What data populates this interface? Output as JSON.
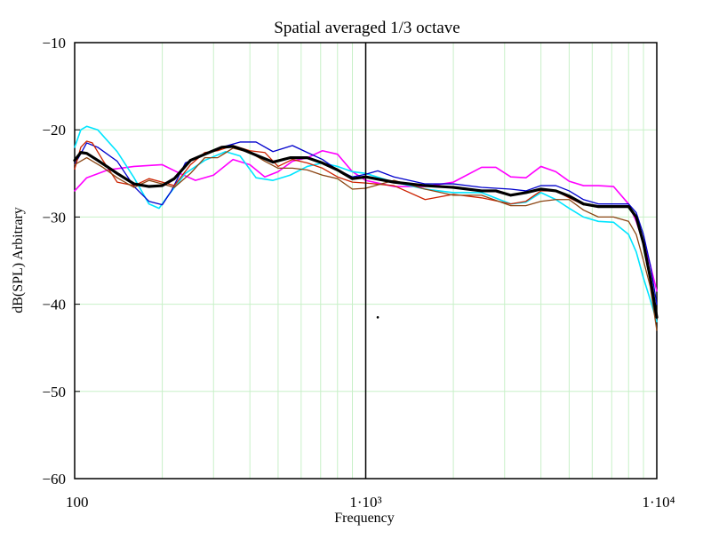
{
  "chart_data": {
    "type": "line",
    "title": "Spatial averaged 1/3 octave",
    "xlabel": "Frequency",
    "ylabel": "dB(SPL) Arbitrary",
    "xscale": "log",
    "xlim": [
      100,
      10000
    ],
    "ylim": [
      -60,
      -10
    ],
    "grid": true,
    "legend": "none",
    "x_ticks": [
      {
        "value": 100,
        "label": "100"
      },
      {
        "value": 1000,
        "label": "1·10³"
      },
      {
        "value": 10000,
        "label": "1·10⁴"
      }
    ],
    "y_ticks": [
      {
        "value": -10,
        "label": "−10"
      },
      {
        "value": -20,
        "label": "−20"
      },
      {
        "value": -30,
        "label": "−30"
      },
      {
        "value": -40,
        "label": "−40"
      },
      {
        "value": -50,
        "label": "−50"
      },
      {
        "value": -60,
        "label": "−60"
      }
    ],
    "vline": 1000,
    "marker_point": {
      "x": 1100,
      "y": -41.5
    },
    "series": [
      {
        "color": "#ff00ff",
        "width": 1.6,
        "x": [
          100,
          110,
          130,
          160,
          200,
          230,
          260,
          300,
          350,
          400,
          450,
          500,
          560,
          630,
          710,
          800,
          900,
          1000,
          1250,
          1600,
          2000,
          2500,
          2800,
          3150,
          3550,
          4000,
          4500,
          5000,
          5600,
          6300,
          7100,
          8000,
          8500,
          9000,
          9500,
          10000
        ],
        "y": [
          -27,
          -25.5,
          -24.6,
          -24.2,
          -24,
          -25,
          -25.8,
          -25.2,
          -23.4,
          -24,
          -25.4,
          -24.8,
          -23.6,
          -23.2,
          -22.4,
          -22.8,
          -24.8,
          -25.8,
          -26.5,
          -26.5,
          -26,
          -24.3,
          -24.3,
          -25.4,
          -25.5,
          -24.2,
          -24.8,
          -25.9,
          -26.4,
          -26.4,
          -26.5,
          -28.5,
          -30.5,
          -33,
          -35.5,
          -38.5
        ]
      },
      {
        "color": "#00e5ff",
        "width": 1.6,
        "x": [
          100,
          105,
          110,
          120,
          140,
          160,
          180,
          195,
          210,
          240,
          280,
          330,
          370,
          420,
          480,
          550,
          630,
          710,
          800,
          900,
          1000,
          1250,
          1600,
          2000,
          2500,
          3150,
          3550,
          4000,
          4500,
          5000,
          5600,
          6300,
          7100,
          8000,
          8500,
          9000,
          9500,
          10000
        ],
        "y": [
          -22,
          -20,
          -19.6,
          -20,
          -22.5,
          -25.5,
          -28.5,
          -29,
          -27.5,
          -25,
          -23.5,
          -22.5,
          -23,
          -25.5,
          -25.8,
          -25.2,
          -24.2,
          -23.8,
          -24.2,
          -24.8,
          -25,
          -26,
          -26.8,
          -27.2,
          -27.2,
          -28.5,
          -28.3,
          -27.2,
          -28,
          -29,
          -30,
          -30.5,
          -30.6,
          -32,
          -34,
          -37,
          -39.5,
          -42
        ]
      },
      {
        "color": "#0000cc",
        "width": 1.3,
        "x": [
          100,
          110,
          120,
          140,
          160,
          180,
          200,
          215,
          240,
          280,
          320,
          370,
          420,
          480,
          560,
          630,
          710,
          800,
          900,
          1000,
          1100,
          1250,
          1600,
          2000,
          2500,
          3150,
          3550,
          4000,
          4500,
          5000,
          5600,
          6300,
          7100,
          8000,
          8500,
          9000,
          9500,
          10000
        ],
        "y": [
          -24,
          -21.5,
          -22,
          -23.6,
          -26.5,
          -28.2,
          -28.6,
          -27,
          -23.8,
          -22.8,
          -22,
          -21.4,
          -21.4,
          -22.5,
          -21.8,
          -22.6,
          -23.4,
          -24.6,
          -25.4,
          -25.1,
          -24.7,
          -25.4,
          -26.2,
          -26.2,
          -26.6,
          -26.8,
          -27,
          -26.4,
          -26.4,
          -27,
          -28,
          -28.5,
          -28.5,
          -28.5,
          -29.5,
          -32,
          -35.5,
          -40
        ]
      },
      {
        "color": "#cc2200",
        "width": 1.3,
        "x": [
          100,
          105,
          110,
          115,
          125,
          140,
          160,
          180,
          200,
          220,
          250,
          280,
          310,
          350,
          400,
          450,
          500,
          560,
          630,
          710,
          800,
          900,
          1000,
          1250,
          1600,
          2000,
          2500,
          3150,
          3550,
          4000,
          4500,
          5000,
          5600,
          6300,
          7100,
          8000,
          8500,
          9000,
          9500,
          10000
        ],
        "y": [
          -24.5,
          -22,
          -21.3,
          -21.5,
          -23.5,
          -26,
          -26.4,
          -25.6,
          -26,
          -26.4,
          -24,
          -22.6,
          -22.4,
          -21.8,
          -22.4,
          -22.6,
          -24.2,
          -23.4,
          -23.8,
          -24.4,
          -25.4,
          -26,
          -26.1,
          -26.4,
          -28,
          -27.4,
          -27.8,
          -28.5,
          -28.2,
          -27,
          -27,
          -27.8,
          -28.6,
          -28.8,
          -28.8,
          -28.8,
          -30,
          -33,
          -36.5,
          -41.5
        ]
      },
      {
        "color": "#8b4513",
        "width": 1.3,
        "x": [
          100,
          110,
          125,
          140,
          160,
          180,
          200,
          220,
          250,
          280,
          310,
          350,
          400,
          450,
          500,
          560,
          630,
          710,
          800,
          900,
          1000,
          1250,
          1600,
          2000,
          2500,
          3150,
          3550,
          4000,
          4500,
          5000,
          5600,
          6300,
          7100,
          8000,
          8500,
          9000,
          9500,
          10000
        ],
        "y": [
          -24,
          -23.2,
          -24.3,
          -25.5,
          -26.6,
          -25.8,
          -26.2,
          -26.6,
          -25,
          -23.2,
          -23.2,
          -22.1,
          -22.6,
          -23.6,
          -24.4,
          -24.4,
          -24.6,
          -25.2,
          -25.6,
          -26.8,
          -26.7,
          -25.8,
          -26.8,
          -27.5,
          -27.5,
          -28.7,
          -28.7,
          -28.2,
          -28,
          -28,
          -29.2,
          -30,
          -30,
          -30.5,
          -32,
          -35,
          -38,
          -43
        ]
      },
      {
        "color": "#000000",
        "width": 3.2,
        "x": [
          100,
          105,
          110,
          120,
          140,
          160,
          180,
          200,
          220,
          250,
          280,
          320,
          350,
          380,
          420,
          480,
          550,
          630,
          710,
          800,
          900,
          1000,
          1250,
          1600,
          2000,
          2500,
          2800,
          3150,
          3550,
          4000,
          4500,
          5000,
          5600,
          6300,
          7100,
          8000,
          8500,
          9000,
          9500,
          10000
        ],
        "y": [
          -23.5,
          -22.6,
          -22.7,
          -23.5,
          -25,
          -26.2,
          -26.5,
          -26.4,
          -25.6,
          -23.5,
          -22.8,
          -22,
          -21.9,
          -22.3,
          -22.9,
          -23.7,
          -23.2,
          -23.2,
          -23.8,
          -24.6,
          -25.6,
          -25.4,
          -26,
          -26.4,
          -26.6,
          -27,
          -27,
          -27.5,
          -27.2,
          -26.8,
          -27,
          -27.6,
          -28.5,
          -28.8,
          -28.8,
          -28.8,
          -30,
          -33,
          -37,
          -41.5
        ]
      }
    ]
  }
}
